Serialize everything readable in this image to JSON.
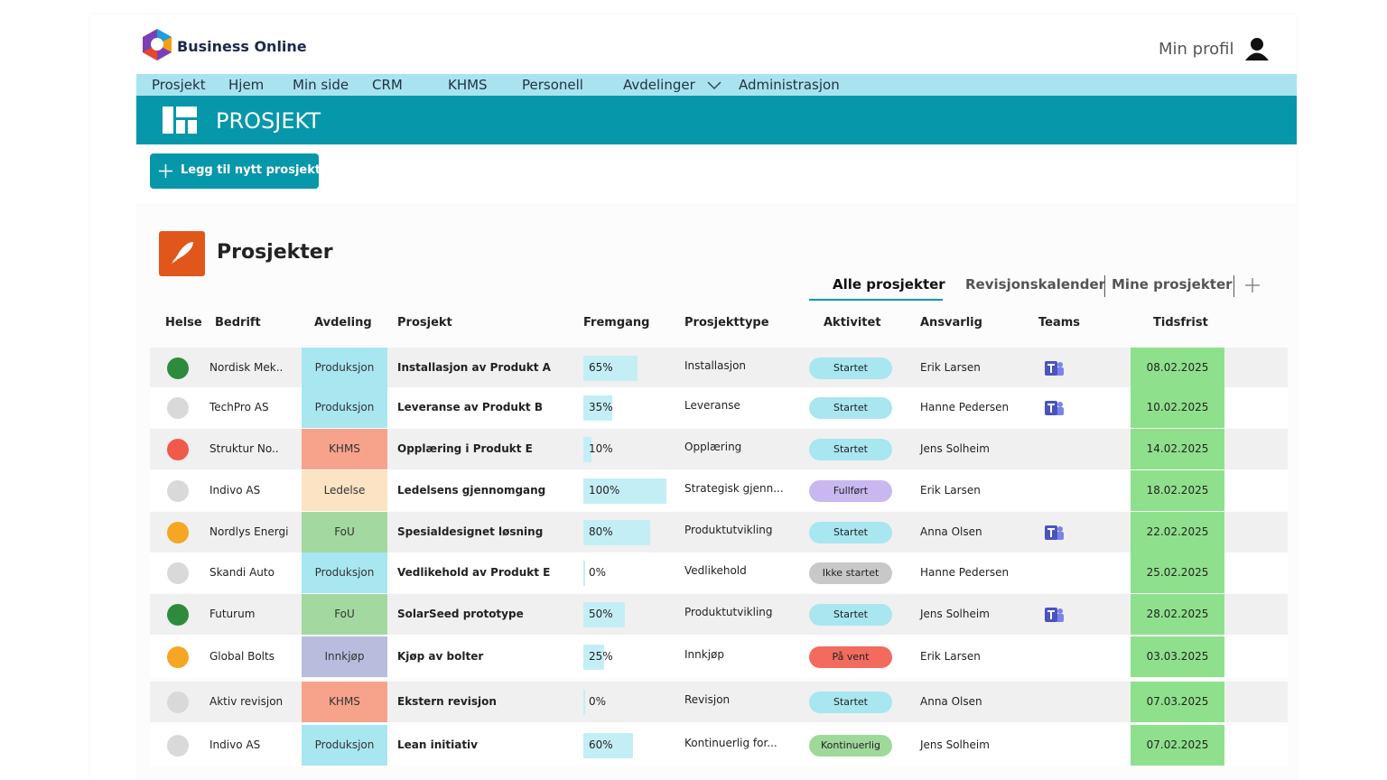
{
  "header": {
    "brand": "Business Online",
    "profile": "Min profil"
  },
  "nav": [
    "Prosjekt",
    "Hjem",
    "Min side",
    "CRM",
    "KHMS",
    "Personell",
    "Avdelinger",
    "Administrasjon"
  ],
  "banner": "PROSJEKT",
  "add_button": "Legg til nytt prosjekt",
  "section_title": "Prosjekter",
  "tabs": {
    "items": [
      "Alle prosjekter",
      "Revisjonskalender",
      "Mine prosjekter"
    ],
    "active": 0
  },
  "table": {
    "columns": [
      "Helse",
      "Bedrift",
      "Avdeling",
      "Prosjekt",
      "Fremgang",
      "Prosjekttype",
      "Aktivitet",
      "Ansvarlig",
      "Teams",
      "Tidsfrist"
    ],
    "rows": [
      {
        "health": "#2e8b3e",
        "company": "Nordisk Mek..",
        "department": "Produksjon",
        "dept_color": "#a8e6f0",
        "project": "Installasjon av Produkt A",
        "progress": {
          "value": 65,
          "label": "65%"
        },
        "type": "Installasjon",
        "status": "Startet",
        "status_color": "#a8e6f0",
        "owner": "Erik Larsen",
        "teams": true,
        "deadline": "08.02.2025"
      },
      {
        "health": "#d9d9d9",
        "company": "TechPro AS",
        "department": "Produksjon",
        "dept_color": "#a8e6f0",
        "project": "Leveranse av Produkt B",
        "progress": {
          "value": 35,
          "label": "35%"
        },
        "type": "Leveranse",
        "status": "Startet",
        "status_color": "#a8e6f0",
        "owner": "Hanne Pedersen",
        "teams": true,
        "deadline": "10.02.2025"
      },
      {
        "health": "#f05a4a",
        "company": "Struktur No..",
        "department": "KHMS",
        "dept_color": "#f7a38c",
        "project": "Opplæring i Produkt E",
        "progress": {
          "value": 10,
          "label": "10%"
        },
        "type": "Opplæring",
        "status": "Startet",
        "status_color": "#a8e6f0",
        "owner": "Jens Solheim",
        "teams": false,
        "deadline": "14.02.2025"
      },
      {
        "health": "#d9d9d9",
        "company": "Indivo AS",
        "department": "Ledelse",
        "dept_color": "#fbe3c4",
        "project": "Ledelsens gjennomgang",
        "progress": {
          "value": 100,
          "label": "100%"
        },
        "type": "Strategisk gjenn...",
        "status": "Fullført",
        "status_color": "#c9b8f0",
        "owner": "Erik Larsen",
        "teams": false,
        "deadline": "18.02.2025"
      },
      {
        "health": "#f5a623",
        "company": "Nordlys Energi",
        "department": "FoU",
        "dept_color": "#a3d9a0",
        "project": "Spesialdesignet løsning",
        "progress": {
          "value": 80,
          "label": "80%"
        },
        "type": "Produktutvikling",
        "status": "Startet",
        "status_color": "#a8e6f0",
        "owner": "Anna Olsen",
        "teams": true,
        "deadline": "22.02.2025"
      },
      {
        "health": "#d9d9d9",
        "company": "Skandi Auto",
        "department": "Produksjon",
        "dept_color": "#a8e6f0",
        "project": "Vedlikehold av Produkt E",
        "progress": {
          "value": 0,
          "label": "0%"
        },
        "type": "Vedlikehold",
        "status": "Ikke startet",
        "status_color": "#c8c8c8",
        "owner": "Hanne Pedersen",
        "teams": false,
        "deadline": "25.02.2025"
      },
      {
        "health": "#2e8b3e",
        "company": "Futurum",
        "department": "FoU",
        "dept_color": "#a3d9a0",
        "project": "SolarSeed prototype",
        "progress": {
          "value": 50,
          "label": "50%"
        },
        "type": "Produktutvikling",
        "status": "Startet",
        "status_color": "#a8e6f0",
        "owner": "Jens Solheim",
        "teams": true,
        "deadline": "28.02.2025"
      },
      {
        "health": "#f5a623",
        "company": "Global Bolts",
        "department": "Innkjøp",
        "dept_color": "#b9bcdc",
        "project": "Kjøp av bolter",
        "progress": {
          "value": 25,
          "label": "25%"
        },
        "type": "Innkjøp",
        "status": "På vent",
        "status_color": "#f26b5e",
        "owner": "Erik Larsen",
        "teams": false,
        "deadline": "03.03.2025"
      },
      {
        "health": "#d9d9d9",
        "company": "Aktiv revisjon",
        "department": "KHMS",
        "dept_color": "#f7a38c",
        "project": "Ekstern revisjon",
        "progress": {
          "value": 0,
          "label": "0%"
        },
        "type": "Revisjon",
        "status": "Startet",
        "status_color": "#a8e6f0",
        "owner": "Anna Olsen",
        "teams": false,
        "deadline": "07.03.2025"
      },
      {
        "health": "#d9d9d9",
        "company": "Indivo AS",
        "department": "Produksjon",
        "dept_color": "#a8e6f0",
        "project": "Lean initiativ",
        "progress": {
          "value": 60,
          "label": "60%"
        },
        "type": "Kontinuerlig for...",
        "status": "Kontinuerlig",
        "status_color": "#9ed99a",
        "owner": "Jens Solheim",
        "teams": false,
        "deadline": "07.02.2025"
      }
    ]
  }
}
